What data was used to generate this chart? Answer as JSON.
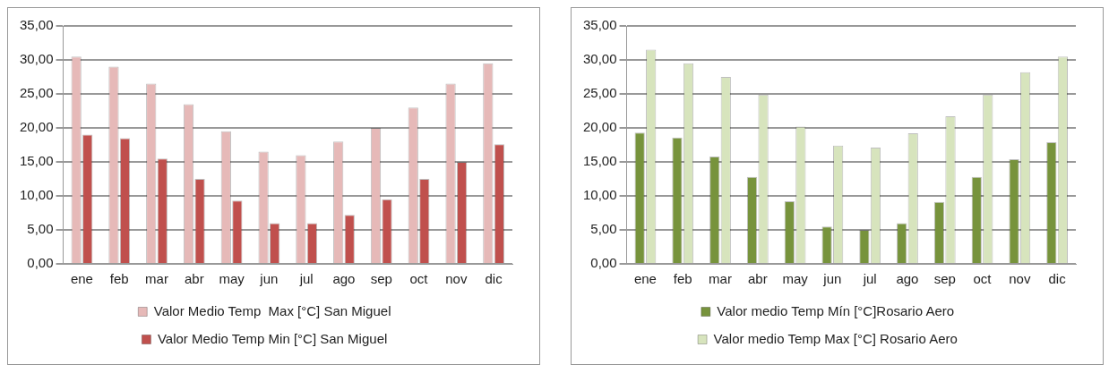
{
  "chart_data": [
    {
      "type": "bar",
      "categories": [
        "ene",
        "feb",
        "mar",
        "abr",
        "may",
        "jun",
        "jul",
        "ago",
        "sep",
        "oct",
        "nov",
        "dic"
      ],
      "ylim": [
        0,
        35
      ],
      "yticks": [
        {
          "value": 0,
          "label": "0,00"
        },
        {
          "value": 5,
          "label": "5,00"
        },
        {
          "value": 10,
          "label": "10,00"
        },
        {
          "value": 15,
          "label": "15,00"
        },
        {
          "value": 20,
          "label": "20,00"
        },
        {
          "value": 25,
          "label": "25,00"
        },
        {
          "value": 30,
          "label": "30,00"
        },
        {
          "value": 35,
          "label": "35,00"
        }
      ],
      "grid": "y",
      "legend": "bottom",
      "series": [
        {
          "name": "Valor Medio Temp  Max [°C] San Miguel",
          "color": "#e6b9b8",
          "values": [
            30.5,
            29,
            26.5,
            23.5,
            19.5,
            16.5,
            16,
            18,
            20,
            23,
            26.5,
            29.5
          ]
        },
        {
          "name": "Valor Medio Temp Min [°C] San Miguel",
          "color": "#c0504d",
          "values": [
            19,
            18.5,
            15.5,
            12.5,
            9.3,
            6,
            6,
            7.2,
            9.5,
            12.5,
            15,
            17.6
          ]
        }
      ]
    },
    {
      "type": "bar",
      "categories": [
        "ene",
        "feb",
        "mar",
        "abr",
        "may",
        "jun",
        "jul",
        "ago",
        "sep",
        "oct",
        "nov",
        "dic"
      ],
      "ylim": [
        0,
        35
      ],
      "yticks": [
        {
          "value": 0,
          "label": "0,00"
        },
        {
          "value": 5,
          "label": "5,00"
        },
        {
          "value": 10,
          "label": "10,00"
        },
        {
          "value": 15,
          "label": "15,00"
        },
        {
          "value": 20,
          "label": "20,00"
        },
        {
          "value": 25,
          "label": "25,00"
        },
        {
          "value": 30,
          "label": "30,00"
        },
        {
          "value": 35,
          "label": "35,00"
        }
      ],
      "grid": "y",
      "legend": "bottom",
      "series": [
        {
          "name": "Valor medio Temp Mín [°C]Rosario Aero",
          "color": "#77933c",
          "values": [
            19.3,
            18.6,
            15.8,
            12.8,
            9.2,
            5.5,
            5,
            6,
            9.1,
            12.8,
            15.4,
            17.9
          ]
        },
        {
          "name": "Valor medio Temp Max [°C] Rosario Aero",
          "color": "#d7e4bd",
          "values": [
            31.5,
            29.5,
            27.5,
            24.9,
            20.2,
            17.4,
            17.1,
            19.2,
            21.7,
            24.9,
            28.2,
            30.5
          ]
        }
      ]
    }
  ]
}
